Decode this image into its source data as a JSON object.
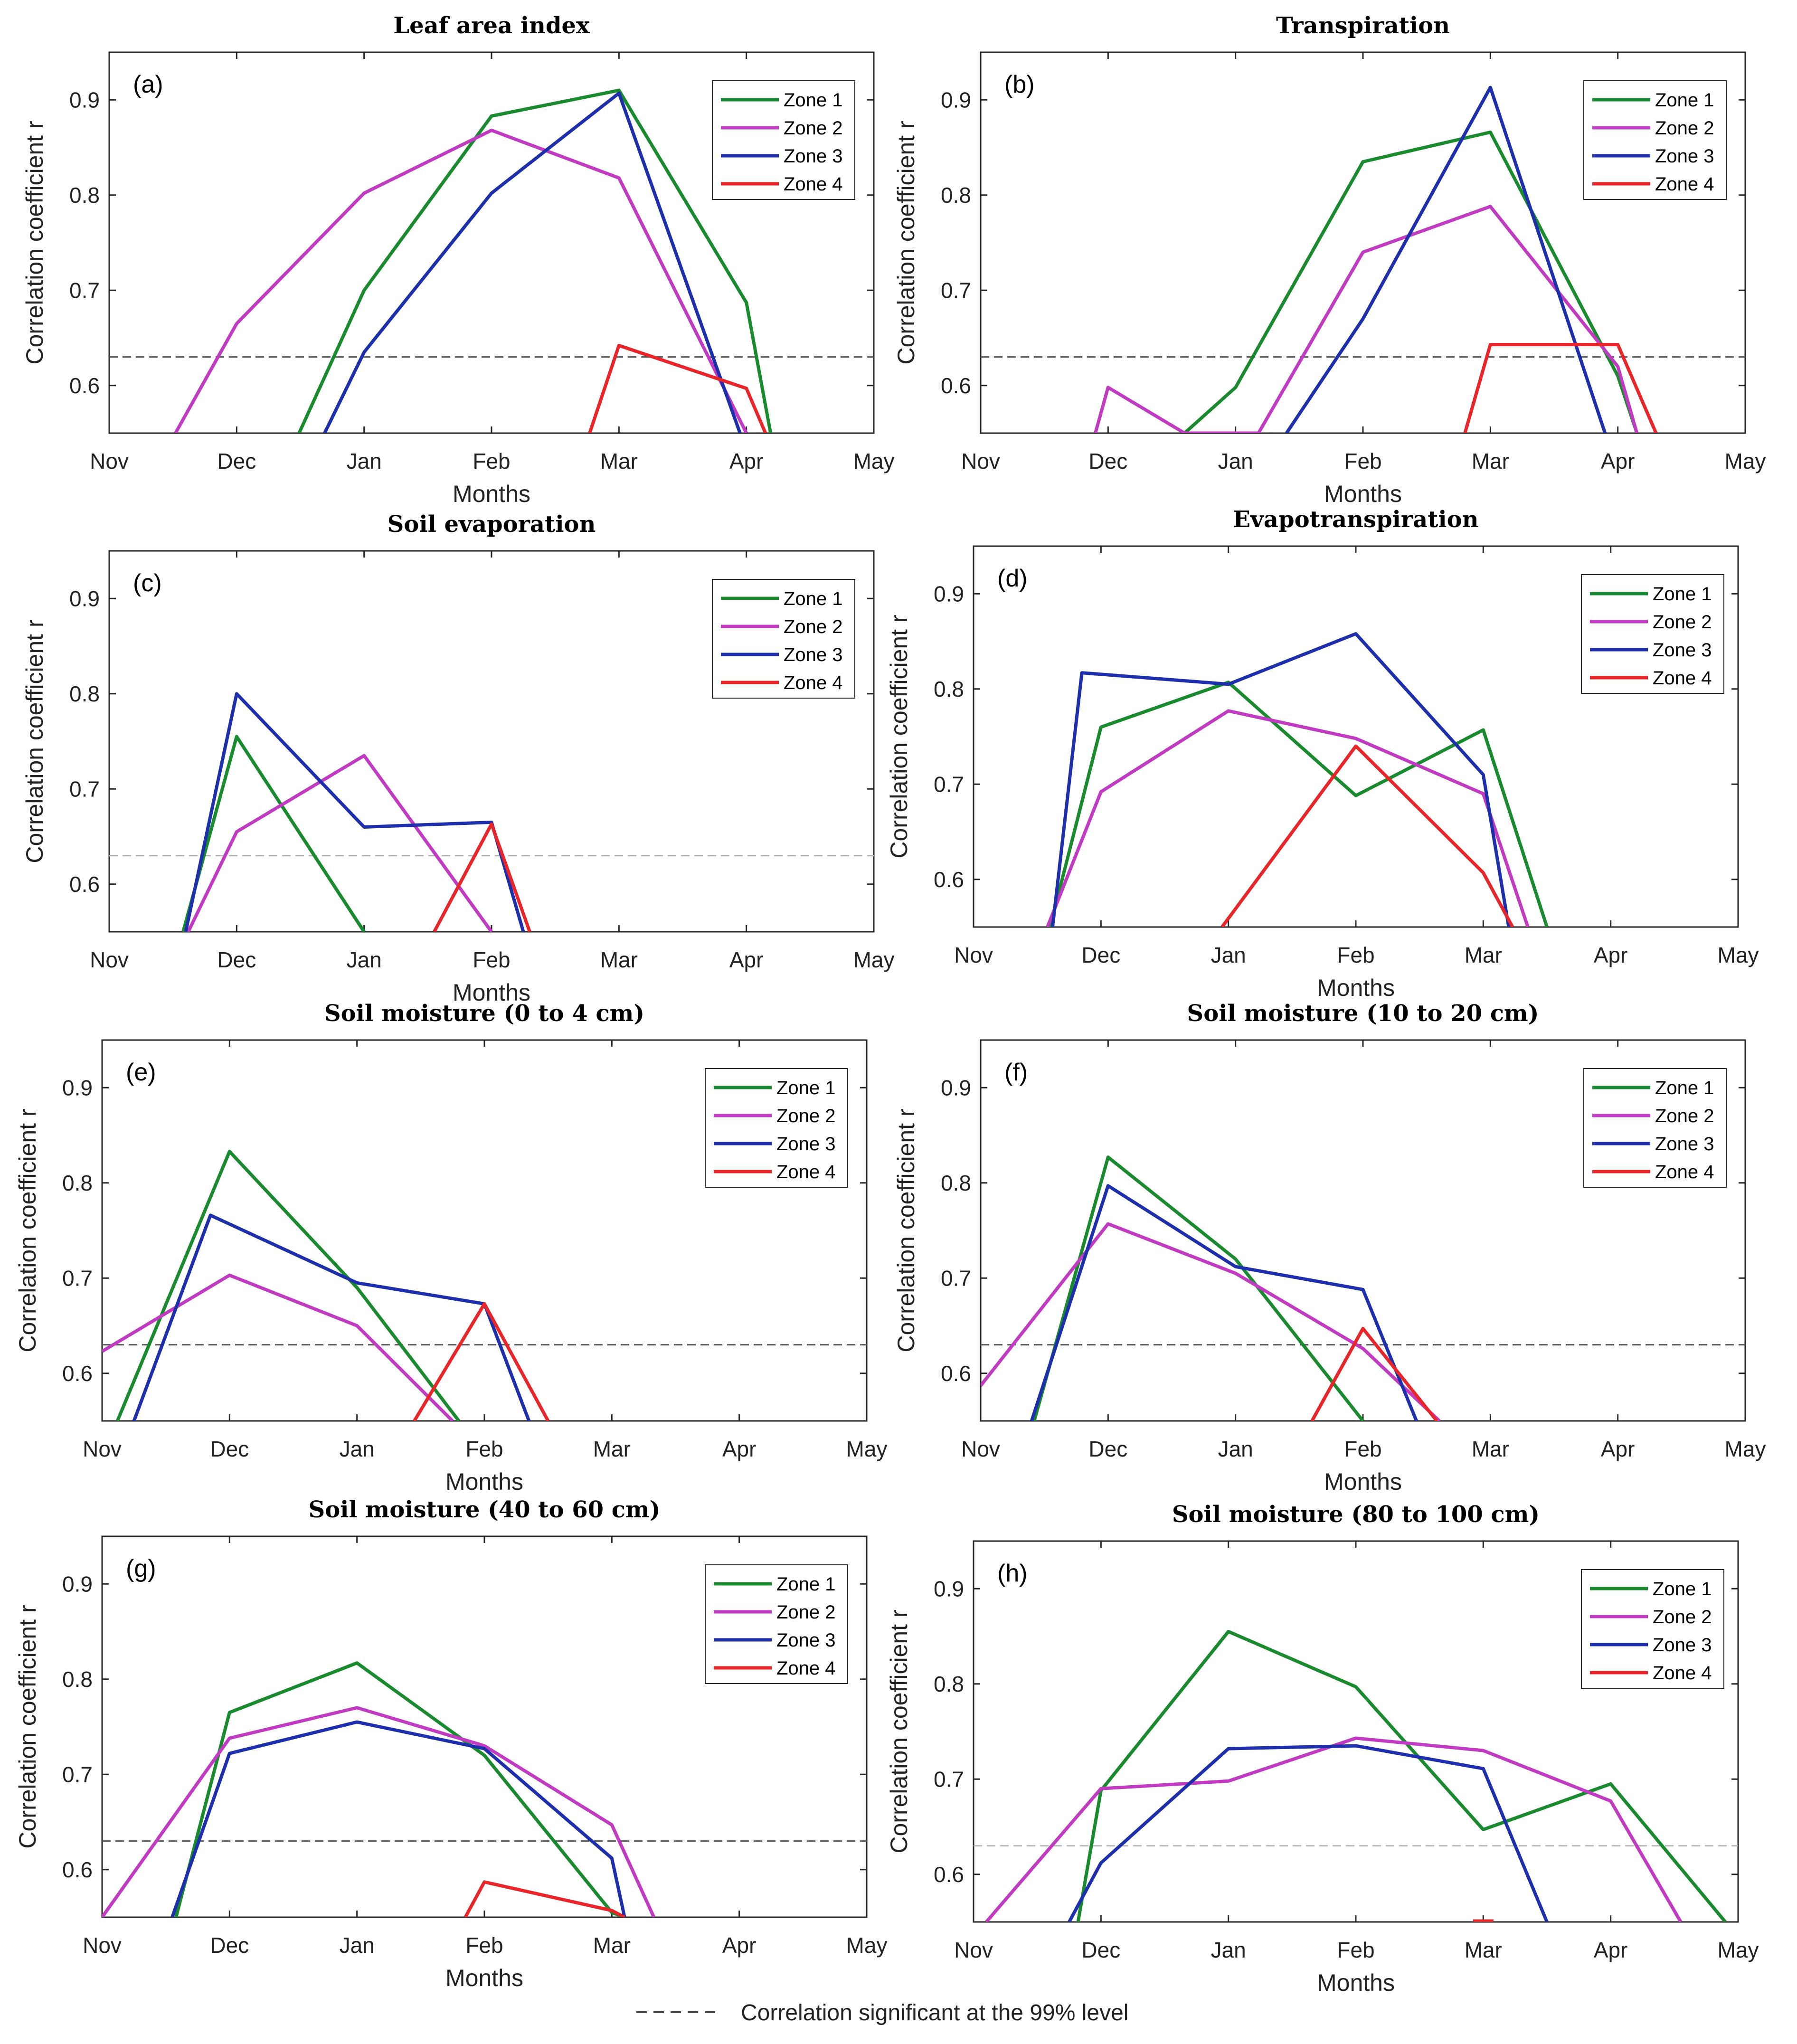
{
  "figure": {
    "footnote": "Correlation significant at  the 99% level",
    "ylabel": "Correlation coefficient r",
    "xlabel": "Months"
  },
  "chart_data": [
    {
      "type": "line",
      "letter": "(a)",
      "title": "Leaf area index",
      "xlabel": "Months",
      "ylabel": "Correlation coefficient r",
      "categories": [
        "Nov",
        "Dec",
        "Jan",
        "Feb",
        "Mar",
        "Apr",
        "May"
      ],
      "yticks": [
        0.6,
        0.7,
        0.8,
        0.9
      ],
      "ylim": [
        0.55,
        0.95
      ],
      "threshold": 0.63,
      "threshold_style": "dark",
      "series": [
        {
          "name": "Zone 1",
          "color": "#1a8a2e",
          "points": [
            [
              1.49,
              0.55
            ],
            [
              2,
              0.7
            ],
            [
              3,
              0.883
            ],
            [
              4,
              0.91
            ],
            [
              5,
              0.687
            ],
            [
              5.19,
              0.55
            ]
          ]
        },
        {
          "name": "Zone 2",
          "color": "#c13bc2",
          "points": [
            [
              0.52,
              0.55
            ],
            [
              1,
              0.665
            ],
            [
              2,
              0.802
            ],
            [
              3,
              0.868
            ],
            [
              4,
              0.818
            ],
            [
              5,
              0.55
            ]
          ]
        },
        {
          "name": "Zone 3",
          "color": "#1d2faa",
          "points": [
            [
              1.69,
              0.55
            ],
            [
              2,
              0.635
            ],
            [
              3,
              0.802
            ],
            [
              4,
              0.907
            ],
            [
              4.95,
              0.55
            ]
          ]
        },
        {
          "name": "Zone 4",
          "color": "#e8262a",
          "points": [
            [
              3.77,
              0.55
            ],
            [
              4,
              0.642
            ],
            [
              5,
              0.597
            ],
            [
              5.15,
              0.55
            ]
          ]
        }
      ]
    },
    {
      "type": "line",
      "letter": "(b)",
      "title": "Transpiration",
      "xlabel": "Months",
      "ylabel": "Correlation coefficient r",
      "categories": [
        "Nov",
        "Dec",
        "Jan",
        "Feb",
        "Mar",
        "Apr",
        "May"
      ],
      "yticks": [
        0.6,
        0.7,
        0.8,
        0.9
      ],
      "ylim": [
        0.55,
        0.95
      ],
      "threshold": 0.63,
      "threshold_style": "dark",
      "series": [
        {
          "name": "Zone 1",
          "color": "#1a8a2e",
          "points": [
            [
              1.6,
              0.55
            ],
            [
              2,
              0.598
            ],
            [
              3,
              0.835
            ],
            [
              4,
              0.866
            ],
            [
              5,
              0.61
            ],
            [
              5.15,
              0.55
            ]
          ]
        },
        {
          "name": "Zone 2",
          "color": "#c13bc2",
          "points": [
            [
              0.9,
              0.55
            ],
            [
              1,
              0.598
            ],
            [
              1.6,
              0.55
            ],
            [
              2.18,
              0.55
            ],
            [
              3,
              0.74
            ],
            [
              4,
              0.788
            ],
            [
              5,
              0.62
            ],
            [
              5.15,
              0.55
            ]
          ]
        },
        {
          "name": "Zone 3",
          "color": "#1d2faa",
          "points": [
            [
              2.4,
              0.55
            ],
            [
              3,
              0.67
            ],
            [
              4,
              0.913
            ],
            [
              4.9,
              0.55
            ]
          ]
        },
        {
          "name": "Zone 4",
          "color": "#e8262a",
          "points": [
            [
              3.8,
              0.55
            ],
            [
              4,
              0.643
            ],
            [
              5,
              0.643
            ],
            [
              5.3,
              0.55
            ]
          ]
        }
      ]
    },
    {
      "type": "line",
      "letter": "(c)",
      "title": "Soil evaporation",
      "xlabel": "Months",
      "ylabel": "Correlation coefficient r",
      "categories": [
        "Nov",
        "Dec",
        "Jan",
        "Feb",
        "Mar",
        "Apr",
        "May"
      ],
      "yticks": [
        0.6,
        0.7,
        0.8,
        0.9
      ],
      "ylim": [
        0.55,
        0.95
      ],
      "threshold": 0.63,
      "threshold_style": "light",
      "series": [
        {
          "name": "Zone 1",
          "color": "#1a8a2e",
          "points": [
            [
              0.58,
              0.55
            ],
            [
              1,
              0.755
            ],
            [
              2,
              0.55
            ]
          ]
        },
        {
          "name": "Zone 2",
          "color": "#c13bc2",
          "points": [
            [
              0.62,
              0.55
            ],
            [
              1,
              0.655
            ],
            [
              2,
              0.735
            ],
            [
              3,
              0.55
            ]
          ]
        },
        {
          "name": "Zone 3",
          "color": "#1d2faa",
          "points": [
            [
              0.6,
              0.55
            ],
            [
              1,
              0.8
            ],
            [
              2,
              0.66
            ],
            [
              3,
              0.665
            ],
            [
              3.25,
              0.55
            ]
          ]
        },
        {
          "name": "Zone 4",
          "color": "#e8262a",
          "points": [
            [
              2.55,
              0.55
            ],
            [
              3,
              0.663
            ],
            [
              3.3,
              0.55
            ]
          ]
        }
      ]
    },
    {
      "type": "line",
      "letter": "(d)",
      "title": "Evapotranspiration",
      "xlabel": "Months",
      "ylabel": "Correlation coefficient r",
      "categories": [
        "Nov",
        "Dec",
        "Jan",
        "Feb",
        "Mar",
        "Apr",
        "May"
      ],
      "yticks": [
        0.6,
        0.7,
        0.8,
        0.9
      ],
      "ylim": [
        0.55,
        0.95
      ],
      "threshold": null,
      "threshold_style": "none",
      "series": [
        {
          "name": "Zone 1",
          "color": "#1a8a2e",
          "points": [
            [
              0.6,
              0.55
            ],
            [
              1,
              0.76
            ],
            [
              2,
              0.807
            ],
            [
              3,
              0.688
            ],
            [
              4,
              0.757
            ],
            [
              4.5,
              0.55
            ]
          ]
        },
        {
          "name": "Zone 2",
          "color": "#c13bc2",
          "points": [
            [
              0.58,
              0.55
            ],
            [
              1,
              0.692
            ],
            [
              2,
              0.777
            ],
            [
              3,
              0.748
            ],
            [
              4,
              0.69
            ],
            [
              4.35,
              0.55
            ]
          ]
        },
        {
          "name": "Zone 3",
          "color": "#1d2faa",
          "points": [
            [
              0.62,
              0.55
            ],
            [
              0.85,
              0.817
            ],
            [
              2,
              0.805
            ],
            [
              3,
              0.858
            ],
            [
              4,
              0.71
            ],
            [
              4.2,
              0.55
            ]
          ]
        },
        {
          "name": "Zone 4",
          "color": "#e8262a",
          "points": [
            [
              1.95,
              0.55
            ],
            [
              3,
              0.74
            ],
            [
              4,
              0.607
            ],
            [
              4.23,
              0.55
            ]
          ]
        }
      ]
    },
    {
      "type": "line",
      "letter": "(e)",
      "title": "Soil moisture (0 to 4 cm)",
      "xlabel": "Months",
      "ylabel": "Correlation coefficient r",
      "categories": [
        "Nov",
        "Dec",
        "Jan",
        "Feb",
        "Mar",
        "Apr",
        "May"
      ],
      "yticks": [
        0.6,
        0.7,
        0.8,
        0.9
      ],
      "ylim": [
        0.55,
        0.95
      ],
      "threshold": 0.63,
      "threshold_style": "dark",
      "series": [
        {
          "name": "Zone 1",
          "color": "#1a8a2e",
          "points": [
            [
              0.12,
              0.55
            ],
            [
              1,
              0.833
            ],
            [
              2,
              0.69
            ],
            [
              2.8,
              0.55
            ]
          ]
        },
        {
          "name": "Zone 2",
          "color": "#c13bc2",
          "points": [
            [
              0,
              0.623
            ],
            [
              1,
              0.703
            ],
            [
              2,
              0.65
            ],
            [
              2.75,
              0.55
            ]
          ]
        },
        {
          "name": "Zone 3",
          "color": "#1d2faa",
          "points": [
            [
              0.25,
              0.55
            ],
            [
              0.85,
              0.766
            ],
            [
              2,
              0.695
            ],
            [
              3,
              0.673
            ],
            [
              3.35,
              0.55
            ]
          ]
        },
        {
          "name": "Zone 4",
          "color": "#e8262a",
          "points": [
            [
              2.45,
              0.55
            ],
            [
              3,
              0.673
            ],
            [
              3.5,
              0.55
            ]
          ]
        }
      ]
    },
    {
      "type": "line",
      "letter": "(f)",
      "title": "Soil moisture (10 to 20 cm)",
      "xlabel": "Months",
      "ylabel": "Correlation coefficient r",
      "categories": [
        "Nov",
        "Dec",
        "Jan",
        "Feb",
        "Mar",
        "Apr",
        "May"
      ],
      "yticks": [
        0.6,
        0.7,
        0.8,
        0.9
      ],
      "ylim": [
        0.55,
        0.95
      ],
      "threshold": 0.63,
      "threshold_style": "dark",
      "series": [
        {
          "name": "Zone 1",
          "color": "#1a8a2e",
          "points": [
            [
              0.42,
              0.55
            ],
            [
              1,
              0.827
            ],
            [
              2,
              0.72
            ],
            [
              3,
              0.55
            ]
          ]
        },
        {
          "name": "Zone 2",
          "color": "#c13bc2",
          "points": [
            [
              0,
              0.587
            ],
            [
              1,
              0.757
            ],
            [
              2,
              0.705
            ],
            [
              3,
              0.626
            ],
            [
              3.6,
              0.55
            ]
          ]
        },
        {
          "name": "Zone 3",
          "color": "#1d2faa",
          "points": [
            [
              0.4,
              0.55
            ],
            [
              1,
              0.797
            ],
            [
              2,
              0.712
            ],
            [
              3,
              0.688
            ],
            [
              3.42,
              0.55
            ]
          ]
        },
        {
          "name": "Zone 4",
          "color": "#e8262a",
          "points": [
            [
              2.6,
              0.55
            ],
            [
              3,
              0.647
            ],
            [
              3.58,
              0.55
            ]
          ]
        }
      ]
    },
    {
      "type": "line",
      "letter": "(g)",
      "title": "Soil moisture (40 to 60 cm)",
      "xlabel": "Months",
      "ylabel": "Correlation coefficient r",
      "categories": [
        "Nov",
        "Dec",
        "Jan",
        "Feb",
        "Mar",
        "Apr",
        "May"
      ],
      "yticks": [
        0.6,
        0.7,
        0.8,
        0.9
      ],
      "ylim": [
        0.55,
        0.95
      ],
      "threshold": 0.63,
      "threshold_style": "dark",
      "series": [
        {
          "name": "Zone 1",
          "color": "#1a8a2e",
          "points": [
            [
              0.58,
              0.55
            ],
            [
              1,
              0.765
            ],
            [
              2,
              0.817
            ],
            [
              3,
              0.72
            ],
            [
              4,
              0.555
            ],
            [
              4.1,
              0.55
            ]
          ]
        },
        {
          "name": "Zone 2",
          "color": "#c13bc2",
          "points": [
            [
              0,
              0.55
            ],
            [
              1,
              0.738
            ],
            [
              2,
              0.77
            ],
            [
              3,
              0.73
            ],
            [
              4,
              0.647
            ],
            [
              4.33,
              0.55
            ]
          ]
        },
        {
          "name": "Zone 3",
          "color": "#1d2faa",
          "points": [
            [
              0.55,
              0.55
            ],
            [
              1,
              0.722
            ],
            [
              2,
              0.755
            ],
            [
              3,
              0.727
            ],
            [
              4,
              0.612
            ],
            [
              4.1,
              0.55
            ]
          ]
        },
        {
          "name": "Zone 4",
          "color": "#e8262a",
          "points": [
            [
              2.85,
              0.55
            ],
            [
              3,
              0.587
            ],
            [
              4,
              0.557
            ],
            [
              4.1,
              0.55
            ]
          ]
        }
      ]
    },
    {
      "type": "line",
      "letter": "(h)",
      "title": "Soil moisture (80 to 100 cm)",
      "xlabel": "Months",
      "ylabel": "Correlation coefficient r",
      "categories": [
        "Nov",
        "Dec",
        "Jan",
        "Feb",
        "Mar",
        "Apr",
        "May"
      ],
      "yticks": [
        0.6,
        0.7,
        0.8,
        0.9
      ],
      "ylim": [
        0.55,
        0.95
      ],
      "threshold": 0.63,
      "threshold_style": "light",
      "series": [
        {
          "name": "Zone 1",
          "color": "#1a8a2e",
          "points": [
            [
              0.82,
              0.55
            ],
            [
              1,
              0.688
            ],
            [
              2,
              0.855
            ],
            [
              3,
              0.797
            ],
            [
              4,
              0.647
            ],
            [
              5,
              0.695
            ],
            [
              5.9,
              0.55
            ]
          ]
        },
        {
          "name": "Zone 2",
          "color": "#c13bc2",
          "points": [
            [
              0.1,
              0.55
            ],
            [
              1,
              0.69
            ],
            [
              2,
              0.698
            ],
            [
              3,
              0.743
            ],
            [
              4,
              0.73
            ],
            [
              5,
              0.677
            ],
            [
              5.55,
              0.55
            ]
          ]
        },
        {
          "name": "Zone 3",
          "color": "#1d2faa",
          "points": [
            [
              0.75,
              0.55
            ],
            [
              1,
              0.612
            ],
            [
              2,
              0.732
            ],
            [
              3,
              0.735
            ],
            [
              4,
              0.711
            ],
            [
              4.5,
              0.55
            ]
          ]
        },
        {
          "name": "Zone 4",
          "color": "#e8262a",
          "points": [
            [
              3.92,
              0.551
            ],
            [
              4.08,
              0.551
            ]
          ]
        }
      ]
    }
  ]
}
